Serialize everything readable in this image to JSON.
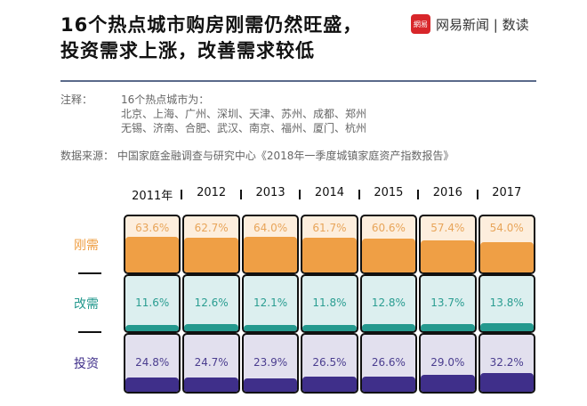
{
  "title": [
    "16个热点城市购房刚需仍然旺盛，",
    "投资需求上涨，改善需求较低"
  ],
  "logo": {
    "mark": "網易",
    "text": "网易新闻 | 数读"
  },
  "notes": {
    "label": "注释：",
    "lines": [
      "16个热点城市为：",
      "北京、上海、广州、深圳、天津、苏州、成都、郑州",
      "无锡、济南、合肥、武汉、南京、福州、厦门、杭州"
    ]
  },
  "source": "数据来源：  中国家庭金融调查与研究中心《2018年一季度城镇家庭资产指数报告》",
  "chart_data": {
    "type": "table",
    "categories": [
      "2011年",
      "2012",
      "2013",
      "2014",
      "2015",
      "2016",
      "2017"
    ],
    "unit": "%",
    "series": [
      {
        "name": "刚需",
        "values": [
          63.6,
          62.7,
          64.0,
          61.7,
          60.6,
          57.4,
          54.0
        ],
        "color": "#ef9f45",
        "bg": "#fdeedd",
        "text": "#e8a55a"
      },
      {
        "name": "改需",
        "values": [
          11.6,
          12.6,
          12.1,
          11.8,
          12.8,
          13.7,
          13.8
        ],
        "color": "#24998e",
        "bg": "#dcefef",
        "text": "#2a9d91"
      },
      {
        "name": "投资",
        "values": [
          24.8,
          24.7,
          23.9,
          26.5,
          26.6,
          29.0,
          32.2
        ],
        "color": "#3f2f8a",
        "bg": "#e2e0ee",
        "text": "#4a3d8f"
      }
    ]
  }
}
